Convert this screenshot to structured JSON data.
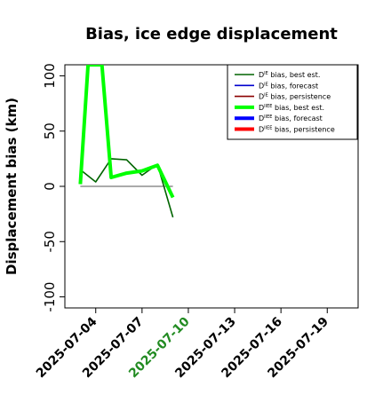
{
  "chart_data": {
    "type": "line",
    "title": "Bias, ice edge displacement",
    "xlabel": "",
    "ylabel": "Displacement bias (km)",
    "x_ticks": [
      "2025-07-04",
      "2025-07-07",
      "2025-07-10",
      "2025-07-13",
      "2025-07-16",
      "2025-07-19"
    ],
    "x_highlight_tick": "2025-07-10",
    "x_highlight_color": "#228B22",
    "xlim": [
      "2025-07-02",
      "2025-07-21"
    ],
    "ylim": [
      -110,
      110
    ],
    "y_ticks": [
      -100,
      -50,
      0,
      50,
      100
    ],
    "grid": false,
    "legend_position": "top-right",
    "reference_line": {
      "y": 0,
      "x_start": "2025-07-03",
      "x_end": "2025-07-09",
      "color": "#555555"
    },
    "series": [
      {
        "name_prefix": "D",
        "name_sup": "IE",
        "name_suffix": " bias, best est.",
        "color": "#006400",
        "width": "thin",
        "points": [
          [
            "2025-07-03",
            15
          ],
          [
            "2025-07-04",
            4
          ],
          [
            "2025-07-05",
            25
          ],
          [
            "2025-07-06",
            24
          ],
          [
            "2025-07-07",
            10
          ],
          [
            "2025-07-08",
            20
          ],
          [
            "2025-07-09",
            -28
          ]
        ]
      },
      {
        "name_prefix": "D",
        "name_sup": "IE",
        "name_suffix": " bias, forecast",
        "color": "#0000CD",
        "width": "thin",
        "points": []
      },
      {
        "name_prefix": "D",
        "name_sup": "IE",
        "name_suffix": " bias, persistence",
        "color": "#8B0000",
        "width": "thin",
        "points": []
      },
      {
        "name_prefix": "D",
        "name_sup": "IIEE",
        "name_suffix": " bias, best est.",
        "color": "#00FF00",
        "width": "thick",
        "points": [
          [
            "2025-07-03",
            2
          ],
          [
            "2025-07-03.5",
            110
          ],
          [
            "2025-07-04.4",
            110
          ],
          [
            "2025-07-05",
            8
          ],
          [
            "2025-07-06",
            12
          ],
          [
            "2025-07-07",
            14
          ],
          [
            "2025-07-08",
            19
          ],
          [
            "2025-07-09",
            -10
          ]
        ]
      },
      {
        "name_prefix": "D",
        "name_sup": "IIEE",
        "name_suffix": " bias, forecast",
        "color": "#0000FF",
        "width": "thick",
        "points": []
      },
      {
        "name_prefix": "D",
        "name_sup": "IIEE",
        "name_suffix": " bias, persistence",
        "color": "#FF0000",
        "width": "thick",
        "points": []
      }
    ]
  }
}
